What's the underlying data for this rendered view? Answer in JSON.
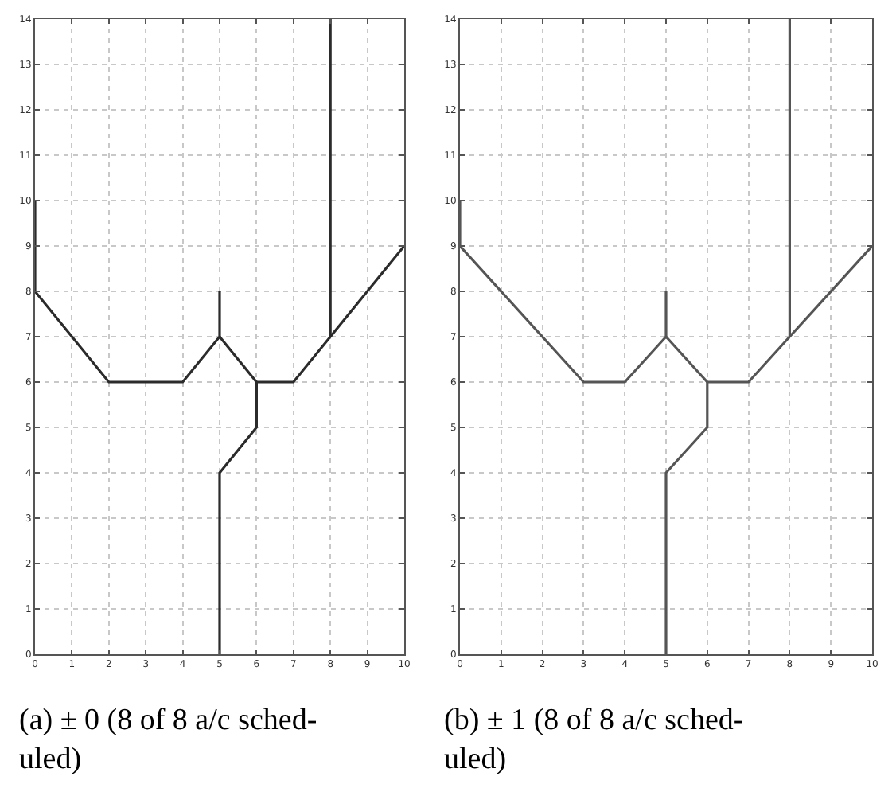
{
  "chart_data": [
    {
      "type": "line",
      "xlim": [
        0,
        10
      ],
      "ylim": [
        0,
        14
      ],
      "xticks": [
        0,
        1,
        2,
        3,
        4,
        5,
        6,
        7,
        8,
        9,
        10
      ],
      "yticks": [
        0,
        1,
        2,
        3,
        4,
        5,
        6,
        7,
        8,
        9,
        10,
        11,
        12,
        13,
        14
      ],
      "grid": true,
      "series": [
        {
          "color": "#2b2b2b",
          "x": [
            0,
            0,
            2,
            4,
            5,
            5
          ],
          "values": [
            10,
            8,
            6,
            6,
            7,
            8
          ]
        },
        {
          "color": "#2b2b2b",
          "x": [
            5,
            5,
            6,
            6,
            7,
            8,
            8
          ],
          "values": [
            0,
            4,
            5,
            6,
            6,
            7,
            14
          ]
        },
        {
          "color": "#2b2b2b",
          "x": [
            5,
            6
          ],
          "values": [
            7,
            6
          ]
        },
        {
          "color": "#2b2b2b",
          "x": [
            8,
            10
          ],
          "values": [
            7,
            9
          ]
        }
      ],
      "annotations": [
        "(a) ± 0 (8 of 8 a/c sched-\nuled)"
      ]
    },
    {
      "type": "line",
      "xlim": [
        0,
        10
      ],
      "ylim": [
        0,
        14
      ],
      "xticks": [
        0,
        1,
        2,
        3,
        4,
        5,
        6,
        7,
        8,
        9,
        10
      ],
      "yticks": [
        0,
        1,
        2,
        3,
        4,
        5,
        6,
        7,
        8,
        9,
        10,
        11,
        12,
        13,
        14
      ],
      "grid": true,
      "series": [
        {
          "color": "#555555",
          "x": [
            0,
            0,
            3,
            4,
            5,
            5
          ],
          "values": [
            10,
            9,
            6,
            6,
            7,
            8
          ]
        },
        {
          "color": "#555555",
          "x": [
            5,
            5,
            6,
            6,
            7,
            8,
            8
          ],
          "values": [
            0,
            4,
            5,
            6,
            6,
            7,
            14
          ]
        },
        {
          "color": "#555555",
          "x": [
            5,
            6
          ],
          "values": [
            7,
            6
          ]
        },
        {
          "color": "#555555",
          "x": [
            8,
            10
          ],
          "values": [
            7,
            9
          ]
        }
      ],
      "annotations": [
        "(b) ± 1 (8 of 8 a/c sched-\nuled)"
      ]
    }
  ]
}
